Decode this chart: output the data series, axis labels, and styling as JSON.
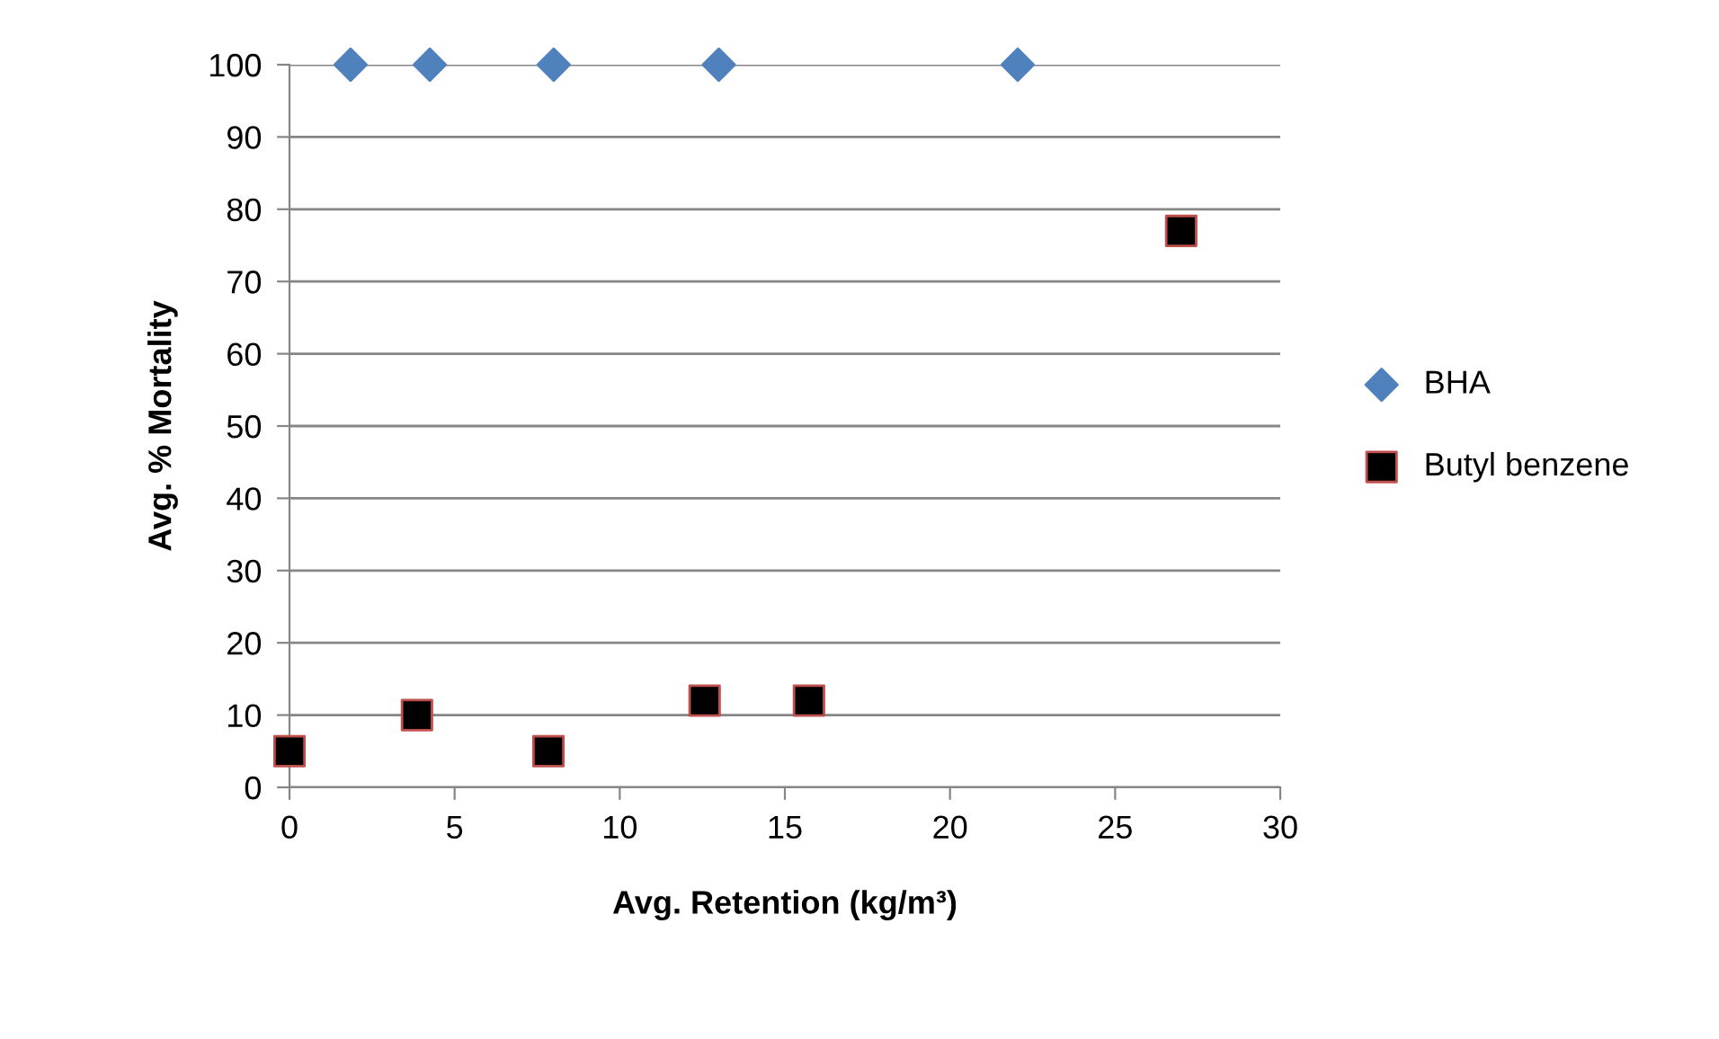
{
  "chart_data": {
    "type": "scatter",
    "xlabel": "Avg. Retention (kg/m³)",
    "ylabel": "Avg. % Mortality",
    "series": [
      {
        "name": "BHA",
        "color": "#4f81bd",
        "marker": "diamond",
        "x": [
          1.85,
          4.25,
          8.0,
          13.0,
          22.05
        ],
        "values": [
          100,
          100,
          100,
          100,
          100
        ]
      },
      {
        "name": "Butyl benzene",
        "color": "#000000",
        "marker": "square",
        "x": [
          0,
          3.86,
          7.84,
          12.57,
          15.73,
          27.0
        ],
        "values": [
          5,
          10,
          5,
          12,
          12,
          77
        ]
      }
    ],
    "xlim": [
      0,
      30
    ],
    "xticks": [
      0,
      5,
      10,
      15,
      20,
      25,
      30
    ],
    "ylim": [
      0,
      100
    ],
    "yticks": [
      0,
      10,
      20,
      30,
      40,
      50,
      60,
      70,
      80,
      90,
      100
    ],
    "grid": "y",
    "legend": "right"
  }
}
